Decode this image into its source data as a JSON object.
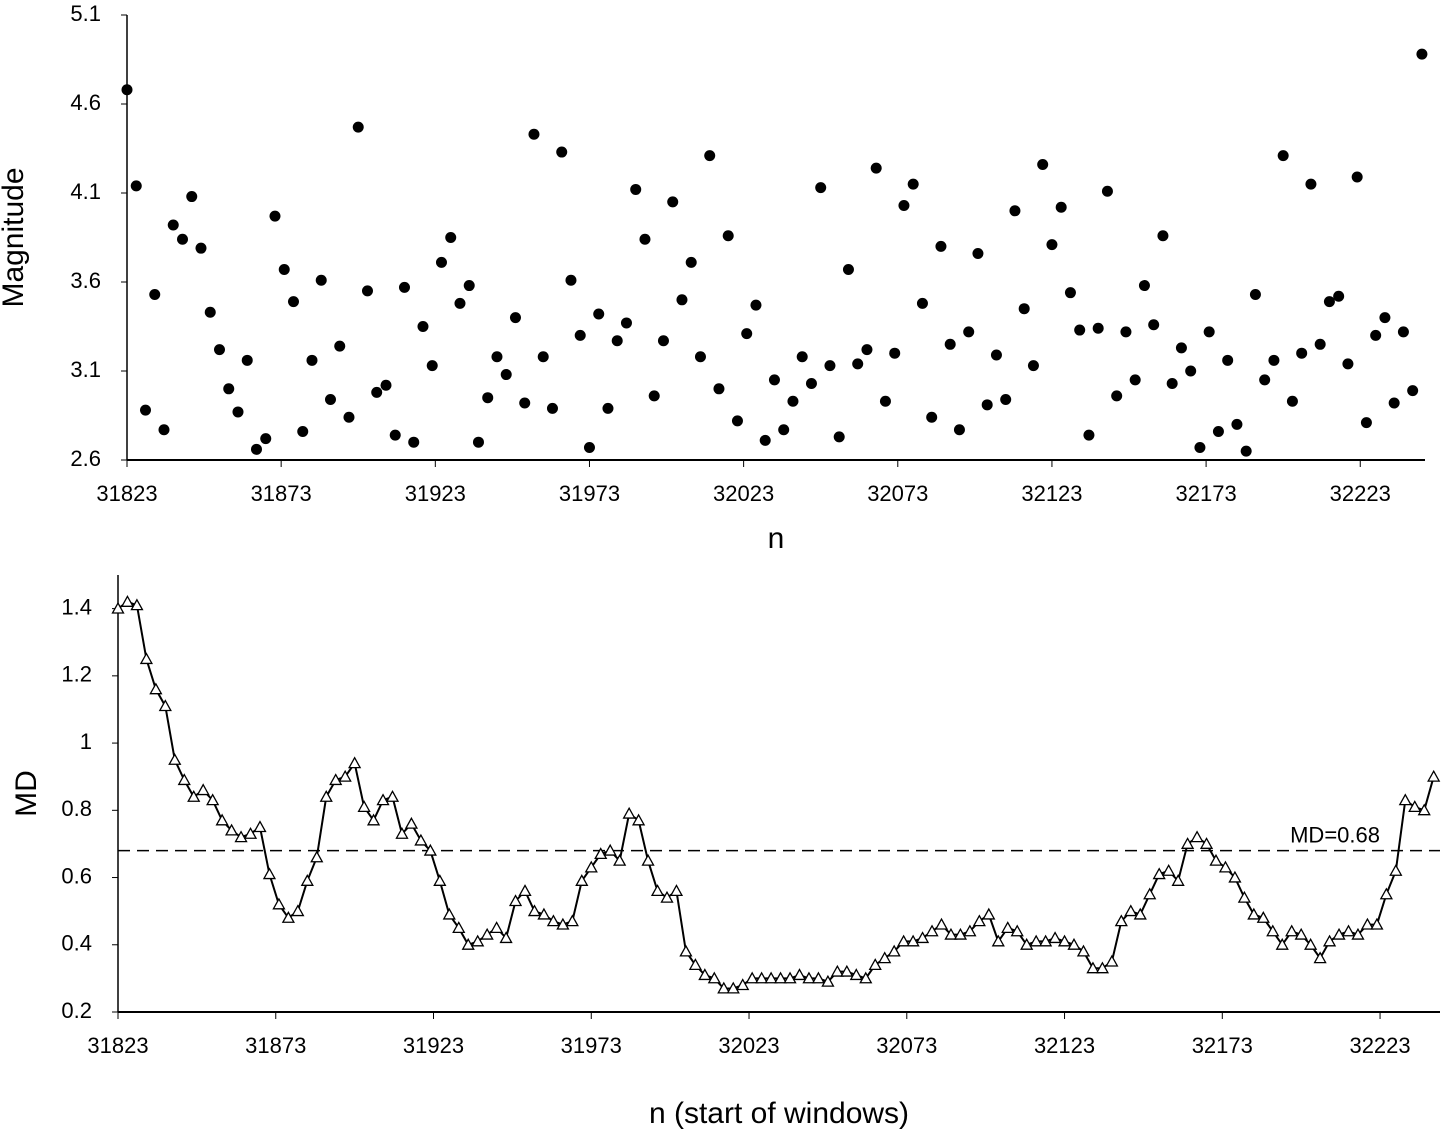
{
  "chart_data": [
    {
      "type": "scatter",
      "x_label": "n",
      "y_label": "Magnitude",
      "color": "#000000",
      "x": [
        31823,
        31826,
        31829,
        31832,
        31835,
        31838,
        31841,
        31844,
        31847,
        31850,
        31853,
        31856,
        31859,
        31862,
        31865,
        31868,
        31871,
        31874,
        31877,
        31880,
        31883,
        31886,
        31889,
        31892,
        31895,
        31898,
        31901,
        31904,
        31907,
        31910,
        31913,
        31916,
        31919,
        31922,
        31925,
        31928,
        31931,
        31934,
        31937,
        31940,
        31943,
        31946,
        31949,
        31952,
        31955,
        31958,
        31961,
        31964,
        31967,
        31970,
        31973,
        31976,
        31979,
        31982,
        31985,
        31988,
        31991,
        31994,
        31997,
        32000,
        32003,
        32006,
        32009,
        32012,
        32015,
        32018,
        32021,
        32024,
        32027,
        32030,
        32033,
        32036,
        32039,
        32042,
        32045,
        32048,
        32051,
        32054,
        32057,
        32060,
        32063,
        32066,
        32069,
        32072,
        32075,
        32078,
        32081,
        32084,
        32087,
        32090,
        32093,
        32096,
        32099,
        32102,
        32105,
        32108,
        32111,
        32114,
        32117,
        32120,
        32123,
        32126,
        32129,
        32132,
        32135,
        32138,
        32141,
        32144,
        32147,
        32150,
        32153,
        32156,
        32159,
        32162,
        32165,
        32168,
        32171,
        32174,
        32177,
        32180,
        32183,
        32186,
        32189,
        32192,
        32195,
        32198,
        32201,
        32204,
        32207,
        32210,
        32213,
        32216,
        32219,
        32222,
        32225,
        32228,
        32231,
        32234,
        32237,
        32240,
        32243
      ],
      "values": [
        4.68,
        4.14,
        2.88,
        3.53,
        2.77,
        3.92,
        3.84,
        4.08,
        3.79,
        3.43,
        3.22,
        3.0,
        2.87,
        3.16,
        2.66,
        2.72,
        3.97,
        3.67,
        3.49,
        2.76,
        3.16,
        3.61,
        2.94,
        3.24,
        2.84,
        4.47,
        3.55,
        2.98,
        3.02,
        2.74,
        3.57,
        2.7,
        3.35,
        3.13,
        3.71,
        3.85,
        3.48,
        3.58,
        2.7,
        2.95,
        3.18,
        3.08,
        3.4,
        2.92,
        4.43,
        3.18,
        2.89,
        4.33,
        3.61,
        3.3,
        2.67,
        3.42,
        2.89,
        3.27,
        3.37,
        4.12,
        3.84,
        2.96,
        3.27,
        4.05,
        3.5,
        3.71,
        3.18,
        4.31,
        3.0,
        3.86,
        2.82,
        3.31,
        3.47,
        2.71,
        3.05,
        2.77,
        2.93,
        3.18,
        3.03,
        4.13,
        3.13,
        2.73,
        3.67,
        3.14,
        3.22,
        4.24,
        2.93,
        3.2,
        4.03,
        4.15,
        3.48,
        2.84,
        3.8,
        3.25,
        2.77,
        3.32,
        3.76,
        2.91,
        3.19,
        2.94,
        4.0,
        3.45,
        3.13,
        4.26,
        3.81,
        4.02,
        3.54,
        3.33,
        2.74,
        3.34,
        4.11,
        2.96,
        3.32,
        3.05,
        3.58,
        3.36,
        3.86,
        3.03,
        3.23,
        3.1,
        2.67,
        3.32,
        2.76,
        3.16,
        2.8,
        2.65,
        3.53,
        3.05,
        3.16,
        4.31,
        2.93,
        3.2,
        4.15,
        3.25,
        3.49,
        3.52,
        3.14,
        4.19,
        2.81,
        3.3,
        3.4,
        2.92,
        3.32,
        2.99,
        4.88
      ],
      "xlim": [
        31823,
        32244
      ],
      "ylim": [
        2.6,
        5.1
      ],
      "xticks": [
        31823,
        31873,
        31923,
        31973,
        32023,
        32073,
        32123,
        32173,
        32223
      ],
      "yticks": [
        2.6,
        3.1,
        3.6,
        4.1,
        4.6,
        5.1
      ]
    },
    {
      "type": "line",
      "x_label": "n (start of windows)",
      "y_label": "MD",
      "color": "#000000",
      "marker": "triangle",
      "x": [
        31823,
        31826,
        31829,
        31832,
        31835,
        31838,
        31841,
        31844,
        31847,
        31850,
        31853,
        31856,
        31859,
        31862,
        31865,
        31868,
        31871,
        31874,
        31877,
        31880,
        31883,
        31886,
        31889,
        31892,
        31895,
        31898,
        31901,
        31904,
        31907,
        31910,
        31913,
        31916,
        31919,
        31922,
        31925,
        31928,
        31931,
        31934,
        31937,
        31940,
        31943,
        31946,
        31949,
        31952,
        31955,
        31958,
        31961,
        31964,
        31967,
        31970,
        31973,
        31976,
        31979,
        31982,
        31985,
        31988,
        31991,
        31994,
        31997,
        32000,
        32003,
        32006,
        32009,
        32012,
        32015,
        32018,
        32021,
        32024,
        32027,
        32030,
        32033,
        32036,
        32039,
        32042,
        32045,
        32048,
        32051,
        32054,
        32057,
        32060,
        32063,
        32066,
        32069,
        32072,
        32075,
        32078,
        32081,
        32084,
        32087,
        32090,
        32093,
        32096,
        32099,
        32102,
        32105,
        32108,
        32111,
        32114,
        32117,
        32120,
        32123,
        32126,
        32129,
        32132,
        32135,
        32138,
        32141,
        32144,
        32147,
        32150,
        32153,
        32156,
        32159,
        32162,
        32165,
        32168,
        32171,
        32174,
        32177,
        32180,
        32183,
        32186,
        32189,
        32192,
        32195,
        32198,
        32201,
        32204,
        32207,
        32210,
        32213,
        32216,
        32219,
        32222,
        32225,
        32228,
        32231,
        32234,
        32237,
        32240
      ],
      "values": [
        1.4,
        1.42,
        1.41,
        1.25,
        1.16,
        1.11,
        0.95,
        0.89,
        0.84,
        0.86,
        0.83,
        0.77,
        0.74,
        0.72,
        0.73,
        0.75,
        0.61,
        0.52,
        0.48,
        0.5,
        0.59,
        0.66,
        0.84,
        0.89,
        0.9,
        0.94,
        0.81,
        0.77,
        0.83,
        0.84,
        0.73,
        0.76,
        0.71,
        0.68,
        0.59,
        0.49,
        0.45,
        0.4,
        0.41,
        0.43,
        0.45,
        0.42,
        0.53,
        0.56,
        0.5,
        0.49,
        0.47,
        0.46,
        0.47,
        0.59,
        0.63,
        0.67,
        0.68,
        0.65,
        0.79,
        0.77,
        0.65,
        0.56,
        0.54,
        0.56,
        0.38,
        0.34,
        0.31,
        0.3,
        0.27,
        0.27,
        0.28,
        0.3,
        0.3,
        0.3,
        0.3,
        0.3,
        0.31,
        0.3,
        0.3,
        0.29,
        0.32,
        0.32,
        0.31,
        0.3,
        0.34,
        0.36,
        0.38,
        0.41,
        0.41,
        0.42,
        0.44,
        0.46,
        0.43,
        0.43,
        0.44,
        0.47,
        0.49,
        0.41,
        0.45,
        0.44,
        0.4,
        0.41,
        0.41,
        0.42,
        0.41,
        0.4,
        0.38,
        0.33,
        0.33,
        0.35,
        0.47,
        0.5,
        0.49,
        0.55,
        0.61,
        0.62,
        0.59,
        0.7,
        0.72,
        0.7,
        0.65,
        0.63,
        0.6,
        0.54,
        0.49,
        0.48,
        0.44,
        0.4,
        0.44,
        0.43,
        0.4,
        0.36,
        0.41,
        0.43,
        0.44,
        0.43,
        0.46,
        0.46,
        0.55,
        0.62,
        0.83,
        0.81,
        0.8,
        0.9
      ],
      "xlim": [
        31823,
        32242
      ],
      "ylim": [
        0.2,
        1.5
      ],
      "xticks": [
        31823,
        31873,
        31923,
        31973,
        32023,
        32073,
        32123,
        32173,
        32223
      ],
      "yticks": [
        0.2,
        0.4,
        0.6,
        0.8,
        1,
        1.2,
        1.4
      ],
      "reference_line": {
        "value": 0.68,
        "label": "MD=0.68",
        "style": "dashed"
      }
    }
  ]
}
